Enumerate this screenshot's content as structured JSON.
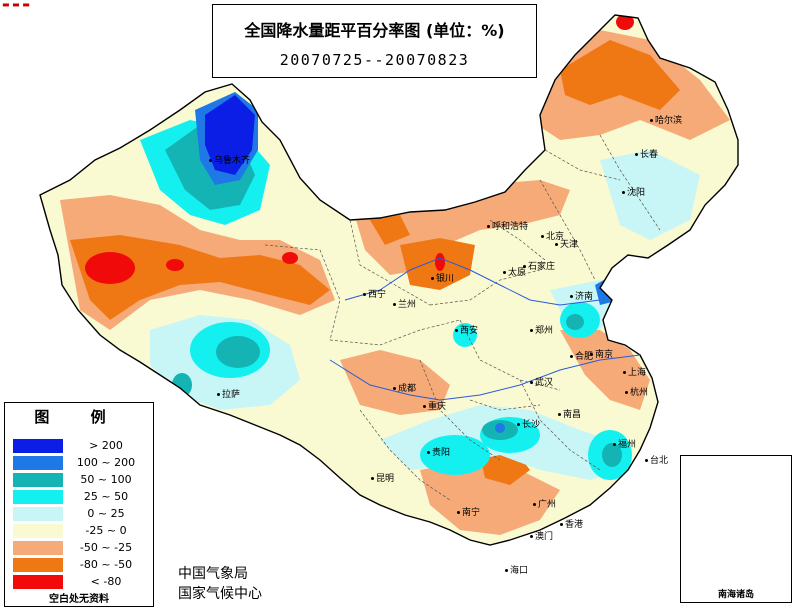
{
  "title": {
    "main": "全国降水量距平百分率图 (单位：%)",
    "dates": "20070725--20070823"
  },
  "legend": {
    "heading": "图  例",
    "items": [
      {
        "label": "> 200",
        "color": "#0a1ee6"
      },
      {
        "label": "100 ~ 200",
        "color": "#1e78e6"
      },
      {
        "label": "50 ~ 100",
        "color": "#14b4b4"
      },
      {
        "label": "25 ~ 50",
        "color": "#14f0f0"
      },
      {
        "label": "0 ~ 25",
        "color": "#c8f5f5"
      },
      {
        "label": "-25 ~ 0",
        "color": "#fafad2"
      },
      {
        "label": "-50 ~ -25",
        "color": "#f5aa78"
      },
      {
        "label": "-80 ~ -50",
        "color": "#f07814"
      },
      {
        "label": "< -80",
        "color": "#f00a0a"
      }
    ],
    "note": "空白处无资料"
  },
  "source": {
    "line1": "中国气象局",
    "line2": "国家气候中心"
  },
  "inset_label": "南海诸岛",
  "cities": [
    {
      "name": "哈尔滨"
    },
    {
      "name": "长春"
    },
    {
      "name": "沈阳"
    },
    {
      "name": "乌鲁木齐"
    },
    {
      "name": "呼和浩特"
    },
    {
      "name": "北京"
    },
    {
      "name": "天津"
    },
    {
      "name": "石家庄"
    },
    {
      "name": "太原"
    },
    {
      "name": "银川"
    },
    {
      "name": "西宁"
    },
    {
      "name": "兰州"
    },
    {
      "name": "济南"
    },
    {
      "name": "郑州"
    },
    {
      "name": "西安"
    },
    {
      "name": "合肥"
    },
    {
      "name": "南京"
    },
    {
      "name": "上海"
    },
    {
      "name": "武汉"
    },
    {
      "name": "成都"
    },
    {
      "name": "拉萨"
    },
    {
      "name": "重庆"
    },
    {
      "name": "杭州"
    },
    {
      "name": "南昌"
    },
    {
      "name": "长沙"
    },
    {
      "name": "贵阳"
    },
    {
      "name": "福州"
    },
    {
      "name": "台北"
    },
    {
      "name": "昆明"
    },
    {
      "name": "南宁"
    },
    {
      "name": "广州"
    },
    {
      "name": "香港"
    },
    {
      "name": "澳门"
    },
    {
      "name": "海口"
    }
  ]
}
